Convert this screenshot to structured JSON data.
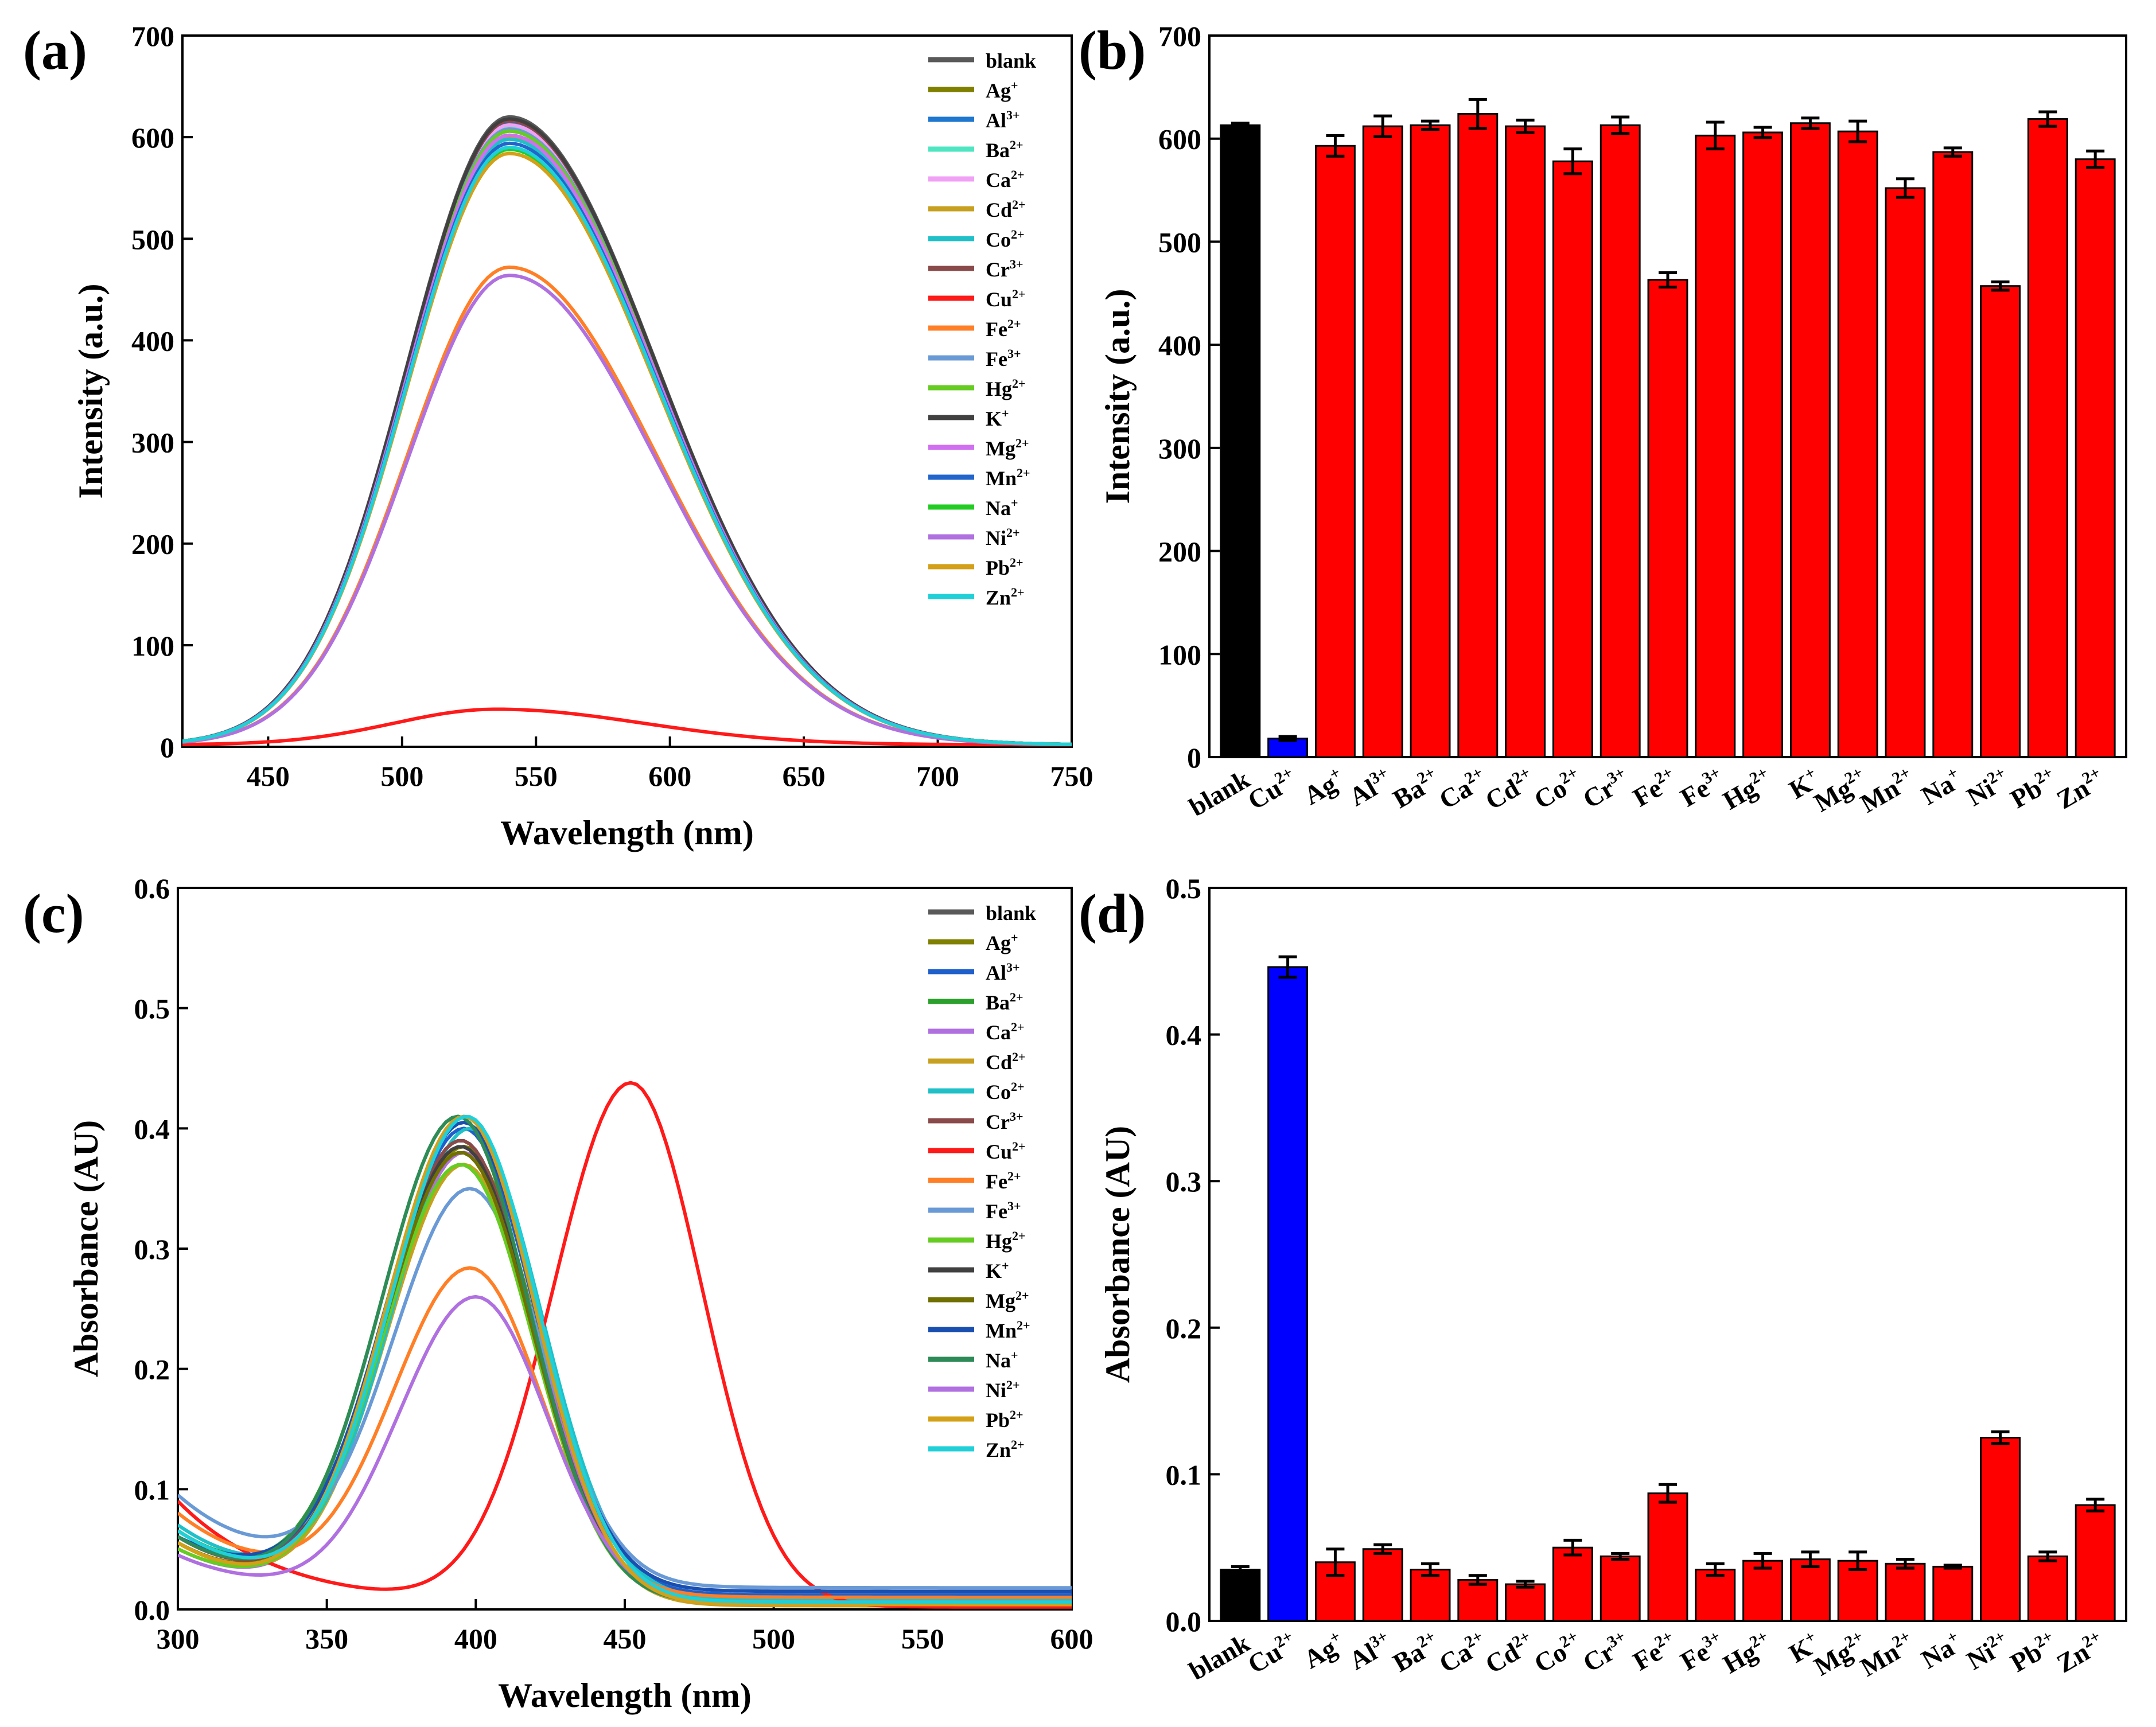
{
  "figure": {
    "panel_labels": [
      "(a)",
      "(b)",
      "(c)",
      "(d)"
    ]
  },
  "chart_data": [
    {
      "id": "a",
      "type": "line",
      "panel_label": "(a)",
      "xlabel": "Wavelength (nm)",
      "ylabel": "Intensity (a.u.)",
      "xlim": [
        418,
        750
      ],
      "ylim": [
        0,
        700
      ],
      "xticks": [
        450,
        500,
        550,
        600,
        650,
        700,
        750
      ],
      "yticks": [
        0,
        100,
        200,
        300,
        400,
        500,
        600,
        700
      ],
      "grid": false,
      "legend_position": "top-right",
      "x": [
        418,
        430,
        440,
        450,
        460,
        470,
        480,
        490,
        500,
        510,
        520,
        530,
        540,
        550,
        560,
        570,
        580,
        590,
        600,
        610,
        620,
        630,
        640,
        650,
        660,
        670,
        680,
        690,
        700,
        710,
        720,
        730,
        740,
        750
      ],
      "series": [
        {
          "name": "blank",
          "base": "",
          "sup": "",
          "color": "#595959",
          "peak": 618,
          "lambda_max": 540
        },
        {
          "name": "Ag+",
          "base": "Ag",
          "sup": "+",
          "color": "#808000",
          "peak": 604,
          "lambda_max": 540
        },
        {
          "name": "Al3+",
          "base": "Al",
          "sup": "3+",
          "color": "#1f77d0",
          "peak": 612,
          "lambda_max": 540
        },
        {
          "name": "Ba2+",
          "base": "Ba",
          "sup": "2+",
          "color": "#4de6c0",
          "peak": 608,
          "lambda_max": 540
        },
        {
          "name": "Ca2+",
          "base": "Ca",
          "sup": "2+",
          "color": "#f0a0f5",
          "peak": 610,
          "lambda_max": 540
        },
        {
          "name": "Cd2+",
          "base": "Cd",
          "sup": "2+",
          "color": "#c8a020",
          "peak": 598,
          "lambda_max": 540
        },
        {
          "name": "Co2+",
          "base": "Co",
          "sup": "2+",
          "color": "#20c0c8",
          "peak": 596,
          "lambda_max": 540
        },
        {
          "name": "Cr3+",
          "base": "Cr",
          "sup": "3+",
          "color": "#8b4a4a",
          "peak": 614,
          "lambda_max": 540
        },
        {
          "name": "Cu2+",
          "base": "Cu",
          "sup": "2+",
          "color": "#ff1a1a",
          "peak": 35,
          "lambda_max": 535
        },
        {
          "name": "Fe2+",
          "base": "Fe",
          "sup": "2+",
          "color": "#ff7f27",
          "peak": 470,
          "lambda_max": 540
        },
        {
          "name": "Fe3+",
          "base": "Fe",
          "sup": "3+",
          "color": "#6a9ad6",
          "peak": 606,
          "lambda_max": 540
        },
        {
          "name": "Hg2+",
          "base": "Hg",
          "sup": "2+",
          "color": "#66cc22",
          "peak": 604,
          "lambda_max": 540
        },
        {
          "name": "K+",
          "base": "K",
          "sup": "+",
          "color": "#404040",
          "peak": 616,
          "lambda_max": 540
        },
        {
          "name": "Mg2+",
          "base": "Mg",
          "sup": "2+",
          "color": "#d070f0",
          "peak": 600,
          "lambda_max": 540
        },
        {
          "name": "Mn2+",
          "base": "Mn",
          "sup": "2+",
          "color": "#2266cc",
          "peak": 592,
          "lambda_max": 540
        },
        {
          "name": "Na+",
          "base": "Na",
          "sup": "+",
          "color": "#22cc22",
          "peak": 586,
          "lambda_max": 540
        },
        {
          "name": "Ni2+",
          "base": "Ni",
          "sup": "2+",
          "color": "#b070e0",
          "peak": 462,
          "lambda_max": 540
        },
        {
          "name": "Pb2+",
          "base": "Pb",
          "sup": "2+",
          "color": "#d4a017",
          "peak": 582,
          "lambda_max": 540
        },
        {
          "name": "Zn2+",
          "base": "Zn",
          "sup": "2+",
          "color": "#20d0d8",
          "peak": 588,
          "lambda_max": 540
        }
      ]
    },
    {
      "id": "b",
      "type": "bar",
      "panel_label": "(b)",
      "xlabel": "",
      "ylabel": "Intensity (a.u.)",
      "ylim": [
        0,
        700
      ],
      "yticks": [
        0,
        100,
        200,
        300,
        400,
        500,
        600,
        700
      ],
      "grid": false,
      "categories": [
        {
          "name": "blank",
          "base": "blank",
          "sup": ""
        },
        {
          "name": "Cu2+",
          "base": "Cu",
          "sup": "2+"
        },
        {
          "name": "Ag+",
          "base": "Ag",
          "sup": "+"
        },
        {
          "name": "Al3+",
          "base": "Al",
          "sup": "3+"
        },
        {
          "name": "Ba2+",
          "base": "Ba",
          "sup": "2+"
        },
        {
          "name": "Ca2+",
          "base": "Ca",
          "sup": "2+"
        },
        {
          "name": "Cd2+",
          "base": "Cd",
          "sup": "2+"
        },
        {
          "name": "Co2+",
          "base": "Co",
          "sup": "2+"
        },
        {
          "name": "Cr3+",
          "base": "Cr",
          "sup": "3+"
        },
        {
          "name": "Fe2+",
          "base": "Fe",
          "sup": "2+"
        },
        {
          "name": "Fe3+",
          "base": "Fe",
          "sup": "3+"
        },
        {
          "name": "Hg2+",
          "base": "Hg",
          "sup": "2+"
        },
        {
          "name": "K+",
          "base": "K",
          "sup": "+"
        },
        {
          "name": "Mg2+",
          "base": "Mg",
          "sup": "2+"
        },
        {
          "name": "Mn2+",
          "base": "Mn",
          "sup": "2+"
        },
        {
          "name": "Na+",
          "base": "Na",
          "sup": "+"
        },
        {
          "name": "Ni2+",
          "base": "Ni",
          "sup": "2+"
        },
        {
          "name": "Pb2+",
          "base": "Pb",
          "sup": "2+"
        },
        {
          "name": "Zn2+",
          "base": "Zn",
          "sup": "2+"
        }
      ],
      "values": [
        613,
        18,
        593,
        612,
        613,
        624,
        612,
        578,
        613,
        463,
        603,
        606,
        615,
        607,
        552,
        587,
        457,
        619,
        580
      ],
      "errors": [
        2,
        2,
        10,
        10,
        4,
        14,
        6,
        12,
        8,
        7,
        13,
        5,
        5,
        10,
        9,
        4,
        4,
        7,
        8
      ],
      "colors": [
        "#000000",
        "#0000ff",
        "#ff0000",
        "#ff0000",
        "#ff0000",
        "#ff0000",
        "#ff0000",
        "#ff0000",
        "#ff0000",
        "#ff0000",
        "#ff0000",
        "#ff0000",
        "#ff0000",
        "#ff0000",
        "#ff0000",
        "#ff0000",
        "#ff0000",
        "#ff0000",
        "#ff0000"
      ]
    },
    {
      "id": "c",
      "type": "line",
      "panel_label": "(c)",
      "xlabel": "Wavelength (nm)",
      "ylabel": "Absorbance (AU)",
      "xlim": [
        300,
        600
      ],
      "ylim": [
        0,
        0.6
      ],
      "xticks": [
        300,
        350,
        400,
        450,
        500,
        550,
        600
      ],
      "yticks": [
        0.0,
        0.1,
        0.2,
        0.3,
        0.4,
        0.5,
        0.6
      ],
      "grid": false,
      "legend_position": "top-right",
      "x": [
        300,
        310,
        320,
        330,
        340,
        350,
        360,
        370,
        380,
        390,
        400,
        410,
        420,
        430,
        440,
        450,
        460,
        470,
        480,
        490,
        500,
        510,
        520,
        530,
        540,
        550,
        560,
        570,
        580,
        590,
        600
      ],
      "series": [
        {
          "name": "blank",
          "base": "",
          "sup": "",
          "color": "#595959",
          "peak": 0.39,
          "lambda_max": 395,
          "start": 0.06,
          "tail": 0.005
        },
        {
          "name": "Ag+",
          "base": "Ag",
          "sup": "+",
          "color": "#808000",
          "peak": 0.385,
          "lambda_max": 396,
          "start": 0.055,
          "tail": 0.005
        },
        {
          "name": "Al3+",
          "base": "Al",
          "sup": "3+",
          "color": "#1f5fcc",
          "peak": 0.4,
          "lambda_max": 396,
          "start": 0.06,
          "tail": 0.012
        },
        {
          "name": "Ba2+",
          "base": "Ba",
          "sup": "2+",
          "color": "#2ca02c",
          "peak": 0.41,
          "lambda_max": 394,
          "start": 0.065,
          "tail": 0.005
        },
        {
          "name": "Ca2+",
          "base": "Ca",
          "sup": "2+",
          "color": "#b070e0",
          "peak": 0.38,
          "lambda_max": 396,
          "start": 0.05,
          "tail": 0.005
        },
        {
          "name": "Cd2+",
          "base": "Cd",
          "sup": "2+",
          "color": "#c8a020",
          "peak": 0.37,
          "lambda_max": 396,
          "start": 0.055,
          "tail": 0.003
        },
        {
          "name": "Co2+",
          "base": "Co",
          "sup": "2+",
          "color": "#20c0c8",
          "peak": 0.4,
          "lambda_max": 398,
          "start": 0.07,
          "tail": 0.008
        },
        {
          "name": "Cr3+",
          "base": "Cr",
          "sup": "3+",
          "color": "#8b4a4a",
          "peak": 0.39,
          "lambda_max": 395,
          "start": 0.06,
          "tail": 0.005
        },
        {
          "name": "Cu2+",
          "base": "Cu",
          "sup": "2+",
          "color": "#ff1a1a",
          "peak": 0.438,
          "lambda_max": 452,
          "start": 0.09,
          "tail": 0.002
        },
        {
          "name": "Fe2+",
          "base": "Fe",
          "sup": "2+",
          "color": "#ff7f27",
          "peak": 0.284,
          "lambda_max": 398,
          "start": 0.08,
          "tail": 0.01
        },
        {
          "name": "Fe3+",
          "base": "Fe",
          "sup": "3+",
          "color": "#6a9ad6",
          "peak": 0.35,
          "lambda_max": 398,
          "start": 0.095,
          "tail": 0.018
        },
        {
          "name": "Hg2+",
          "base": "Hg",
          "sup": "2+",
          "color": "#66cc22",
          "peak": 0.37,
          "lambda_max": 395,
          "start": 0.05,
          "tail": 0.005
        },
        {
          "name": "K+",
          "base": "K",
          "sup": "+",
          "color": "#404040",
          "peak": 0.385,
          "lambda_max": 395,
          "start": 0.055,
          "tail": 0.005
        },
        {
          "name": "Mg2+",
          "base": "Mg",
          "sup": "2+",
          "color": "#707000",
          "peak": 0.38,
          "lambda_max": 395,
          "start": 0.055,
          "tail": 0.005
        },
        {
          "name": "Mn2+",
          "base": "Mn",
          "sup": "2+",
          "color": "#1a4fb0",
          "peak": 0.405,
          "lambda_max": 396,
          "start": 0.06,
          "tail": 0.015
        },
        {
          "name": "Na+",
          "base": "Na",
          "sup": "+",
          "color": "#2e8b57",
          "peak": 0.41,
          "lambda_max": 394,
          "start": 0.06,
          "tail": 0.005
        },
        {
          "name": "Ni2+",
          "base": "Ni",
          "sup": "2+",
          "color": "#b070e0",
          "peak": 0.26,
          "lambda_max": 400,
          "start": 0.045,
          "tail": 0.006
        },
        {
          "name": "Pb2+",
          "base": "Pb",
          "sup": "2+",
          "color": "#d4a017",
          "peak": 0.41,
          "lambda_max": 396,
          "start": 0.055,
          "tail": 0.004
        },
        {
          "name": "Zn2+",
          "base": "Zn",
          "sup": "2+",
          "color": "#20d0d8",
          "peak": 0.41,
          "lambda_max": 397,
          "start": 0.065,
          "tail": 0.006
        }
      ]
    },
    {
      "id": "d",
      "type": "bar",
      "panel_label": "(d)",
      "xlabel": "",
      "ylabel": "Absorbance (AU)",
      "ylim": [
        0,
        0.5
      ],
      "yticks": [
        0.0,
        0.1,
        0.2,
        0.3,
        0.4,
        0.5
      ],
      "grid": false,
      "categories": [
        {
          "name": "blank",
          "base": "blank",
          "sup": ""
        },
        {
          "name": "Cu2+",
          "base": "Cu",
          "sup": "2+"
        },
        {
          "name": "Ag+",
          "base": "Ag",
          "sup": "+"
        },
        {
          "name": "Al3+",
          "base": "Al",
          "sup": "3+"
        },
        {
          "name": "Ba2+",
          "base": "Ba",
          "sup": "2+"
        },
        {
          "name": "Ca2+",
          "base": "Ca",
          "sup": "2+"
        },
        {
          "name": "Cd2+",
          "base": "Cd",
          "sup": "2+"
        },
        {
          "name": "Co2+",
          "base": "Co",
          "sup": "2+"
        },
        {
          "name": "Cr3+",
          "base": "Cr",
          "sup": "3+"
        },
        {
          "name": "Fe2+",
          "base": "Fe",
          "sup": "2+"
        },
        {
          "name": "Fe3+",
          "base": "Fe",
          "sup": "3+"
        },
        {
          "name": "Hg2+",
          "base": "Hg",
          "sup": "2+"
        },
        {
          "name": "K+",
          "base": "K",
          "sup": "+"
        },
        {
          "name": "Mg2+",
          "base": "Mg",
          "sup": "2+"
        },
        {
          "name": "Mn2+",
          "base": "Mn",
          "sup": "2+"
        },
        {
          "name": "Na+",
          "base": "Na",
          "sup": "+"
        },
        {
          "name": "Ni2+",
          "base": "Ni",
          "sup": "2+"
        },
        {
          "name": "Pb2+",
          "base": "Pb",
          "sup": "2+"
        },
        {
          "name": "Zn2+",
          "base": "Zn",
          "sup": "2+"
        }
      ],
      "values": [
        0.035,
        0.446,
        0.04,
        0.049,
        0.035,
        0.028,
        0.025,
        0.05,
        0.044,
        0.087,
        0.035,
        0.041,
        0.042,
        0.041,
        0.039,
        0.037,
        0.125,
        0.044,
        0.079
      ],
      "errors": [
        0.002,
        0.007,
        0.009,
        0.003,
        0.004,
        0.003,
        0.002,
        0.005,
        0.002,
        0.006,
        0.004,
        0.005,
        0.005,
        0.006,
        0.003,
        0.001,
        0.004,
        0.003,
        0.004
      ],
      "colors": [
        "#000000",
        "#0000ff",
        "#ff0000",
        "#ff0000",
        "#ff0000",
        "#ff0000",
        "#ff0000",
        "#ff0000",
        "#ff0000",
        "#ff0000",
        "#ff0000",
        "#ff0000",
        "#ff0000",
        "#ff0000",
        "#ff0000",
        "#ff0000",
        "#ff0000",
        "#ff0000",
        "#ff0000"
      ]
    }
  ]
}
